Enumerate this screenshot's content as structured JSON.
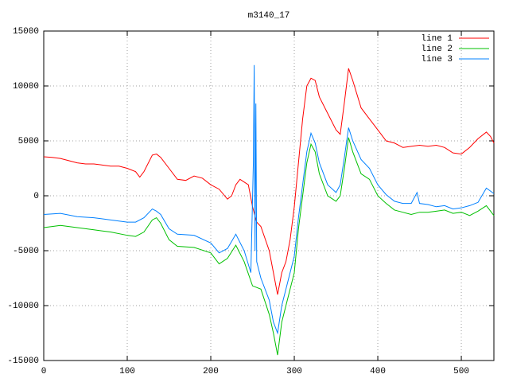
{
  "chart_data": {
    "type": "line",
    "title": "m3140_17",
    "xlim": [
      0,
      539
    ],
    "ylim": [
      -15000,
      15000
    ],
    "xticks": [
      0,
      100,
      200,
      300,
      400,
      500
    ],
    "yticks": [
      -15000,
      -10000,
      -5000,
      0,
      5000,
      10000,
      15000
    ],
    "grid": true,
    "legend": "top-right",
    "series": [
      {
        "name": "line 1",
        "color": "#ff0000",
        "x": [
          0,
          10,
          20,
          30,
          40,
          50,
          60,
          70,
          80,
          90,
          100,
          110,
          115,
          120,
          130,
          135,
          140,
          150,
          160,
          170,
          180,
          190,
          200,
          210,
          220,
          225,
          230,
          235,
          245,
          250,
          255,
          260,
          270,
          275,
          280,
          285,
          290,
          295,
          300,
          305,
          310,
          315,
          320,
          325,
          330,
          340,
          350,
          355,
          360,
          365,
          370,
          380,
          390,
          400,
          410,
          420,
          430,
          440,
          450,
          460,
          470,
          480,
          490,
          500,
          510,
          520,
          530,
          535,
          539
        ],
        "values": [
          3550,
          3500,
          3400,
          3200,
          3000,
          2900,
          2900,
          2800,
          2700,
          2700,
          2500,
          2200,
          1700,
          2200,
          3700,
          3800,
          3500,
          2500,
          1500,
          1400,
          1800,
          1600,
          1000,
          600,
          -300,
          0,
          1000,
          1500,
          1000,
          -1000,
          -2400,
          -2800,
          -5000,
          -7000,
          -9000,
          -7000,
          -6000,
          -4000,
          -1000,
          3000,
          7000,
          10000,
          10700,
          10500,
          9000,
          7500,
          6000,
          5600,
          8500,
          11600,
          10500,
          8000,
          7000,
          6000,
          5000,
          4800,
          4400,
          4500,
          4600,
          4500,
          4600,
          4400,
          3900,
          3800,
          4400,
          5200,
          5800,
          5400,
          4800
        ]
      },
      {
        "name": "line 2",
        "color": "#00c000",
        "x": [
          0,
          20,
          40,
          60,
          80,
          100,
          110,
          120,
          130,
          135,
          140,
          150,
          160,
          180,
          200,
          210,
          220,
          230,
          240,
          250,
          260,
          270,
          275,
          280,
          285,
          290,
          300,
          305,
          310,
          315,
          320,
          325,
          330,
          340,
          350,
          355,
          360,
          365,
          370,
          380,
          390,
          400,
          410,
          420,
          430,
          440,
          450,
          460,
          470,
          480,
          490,
          500,
          510,
          520,
          530,
          539
        ],
        "values": [
          -2900,
          -2700,
          -2900,
          -3100,
          -3300,
          -3600,
          -3700,
          -3300,
          -2200,
          -2000,
          -2500,
          -4000,
          -4600,
          -4700,
          -5200,
          -6200,
          -5700,
          -4500,
          -6000,
          -8200,
          -8500,
          -10800,
          -12500,
          -14500,
          -11500,
          -10000,
          -7000,
          -3000,
          0,
          3000,
          4700,
          4000,
          2000,
          0,
          -500,
          0,
          2500,
          5300,
          4000,
          2000,
          1500,
          0,
          -700,
          -1300,
          -1500,
          -1700,
          -1500,
          -1500,
          -1400,
          -1300,
          -1600,
          -1500,
          -1800,
          -1400,
          -900,
          -1800
        ]
      },
      {
        "name": "line 3",
        "color": "#0080ff",
        "x": [
          0,
          20,
          40,
          60,
          80,
          100,
          110,
          120,
          130,
          135,
          140,
          150,
          160,
          180,
          200,
          210,
          220,
          230,
          240,
          248,
          251,
          252,
          253,
          254,
          255,
          260,
          270,
          275,
          280,
          285,
          290,
          300,
          305,
          310,
          315,
          320,
          325,
          330,
          340,
          350,
          355,
          360,
          365,
          370,
          380,
          390,
          400,
          410,
          420,
          430,
          440,
          447,
          450,
          460,
          470,
          480,
          490,
          500,
          510,
          520,
          530,
          539
        ],
        "values": [
          -1700,
          -1600,
          -1900,
          -2000,
          -2200,
          -2400,
          -2400,
          -2000,
          -1200,
          -1400,
          -1700,
          -3000,
          -3500,
          -3600,
          -4300,
          -5200,
          -4800,
          -3500,
          -5000,
          -7000,
          3000,
          11900,
          -5000,
          8400,
          -6000,
          -7500,
          -9500,
          -11500,
          -12500,
          -10000,
          -8500,
          -5500,
          -2000,
          1000,
          4000,
          5700,
          4800,
          3000,
          1000,
          300,
          1000,
          3500,
          6200,
          5000,
          3300,
          2500,
          1000,
          100,
          -500,
          -700,
          -700,
          300,
          -700,
          -800,
          -1000,
          -900,
          -1200,
          -1100,
          -900,
          -600,
          700,
          200
        ]
      }
    ]
  }
}
